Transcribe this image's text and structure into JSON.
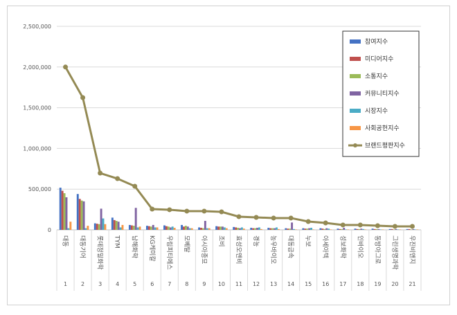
{
  "chart_data": {
    "type": "bar_line",
    "categories": [
      "대동",
      "대동기어",
      "롯데정밀화학",
      "TYM",
      "남해화학",
      "KG케미칼",
      "우림피티에스",
      "모베탈",
      "아시아종묘",
      "조비",
      "효성오앤비",
      "경농",
      "농우바이오",
      "대동금속",
      "누보",
      "아세아텍",
      "성보화학",
      "인바이오",
      "동방아그로",
      "그린생명과학",
      "우진비앤지"
    ],
    "ranks": [
      1,
      2,
      3,
      4,
      5,
      6,
      7,
      8,
      9,
      10,
      11,
      12,
      13,
      14,
      15,
      16,
      17,
      18,
      19,
      20,
      21
    ],
    "series": [
      {
        "name": "참여지수",
        "color": "#4472c4",
        "kind": "bar",
        "values": [
          518000,
          440000,
          80000,
          150000,
          60000,
          50000,
          55000,
          60000,
          30000,
          45000,
          35000,
          25000,
          25000,
          20000,
          20000,
          20000,
          15000,
          15000,
          15000,
          10000,
          10000
        ]
      },
      {
        "name": "미디어지수",
        "color": "#c0504d",
        "kind": "bar",
        "values": [
          480000,
          380000,
          75000,
          120000,
          55000,
          45000,
          45000,
          40000,
          25000,
          40000,
          30000,
          20000,
          20000,
          15000,
          15000,
          15000,
          10000,
          10000,
          10000,
          10000,
          10000
        ]
      },
      {
        "name": "소통지수",
        "color": "#9bbb59",
        "kind": "bar",
        "values": [
          450000,
          360000,
          70000,
          110000,
          50000,
          40000,
          40000,
          50000,
          20000,
          40000,
          25000,
          20000,
          20000,
          15000,
          15000,
          10000,
          10000,
          10000,
          10000,
          5000,
          5000
        ]
      },
      {
        "name": "커뮤니티지수",
        "color": "#8064a2",
        "kind": "bar",
        "values": [
          400000,
          350000,
          260000,
          100000,
          270000,
          60000,
          30000,
          40000,
          110000,
          40000,
          20000,
          25000,
          20000,
          90000,
          20000,
          20000,
          25000,
          15000,
          10000,
          10000,
          10000
        ]
      },
      {
        "name": "시장지수",
        "color": "#4bacc6",
        "kind": "bar",
        "values": [
          20000,
          20000,
          140000,
          30000,
          30000,
          30000,
          40000,
          20000,
          20000,
          30000,
          30000,
          30000,
          30000,
          10000,
          25000,
          15000,
          5000,
          10000,
          5000,
          5000,
          5000
        ]
      },
      {
        "name": "사회공헌지수",
        "color": "#f79646",
        "kind": "bar",
        "values": [
          100000,
          50000,
          70000,
          60000,
          40000,
          30000,
          25000,
          20000,
          20000,
          20000,
          15000,
          10000,
          10000,
          5000,
          5000,
          5000,
          5000,
          5000,
          5000,
          5000,
          5000
        ]
      },
      {
        "name": "브랜드평판지수",
        "color": "#948a54",
        "kind": "line",
        "values": [
          2000000,
          1624000,
          697000,
          629000,
          536000,
          255000,
          247000,
          230000,
          230000,
          221000,
          162000,
          153000,
          145000,
          145000,
          102000,
          85000,
          60000,
          60000,
          51000,
          43000,
          43000
        ]
      }
    ],
    "ylim": [
      0,
      2500000
    ],
    "yticks": [
      0,
      {
        "value": 500000,
        "label": "500,000"
      },
      {
        "value": 1000000,
        "label": "1,000,000"
      },
      {
        "value": 1500000,
        "label": "1,500,000"
      },
      {
        "value": 2000000,
        "label": "2,000,000"
      },
      {
        "value": 2500000,
        "label": "2,500,000"
      }
    ],
    "grid": true,
    "legend": "upper right"
  }
}
